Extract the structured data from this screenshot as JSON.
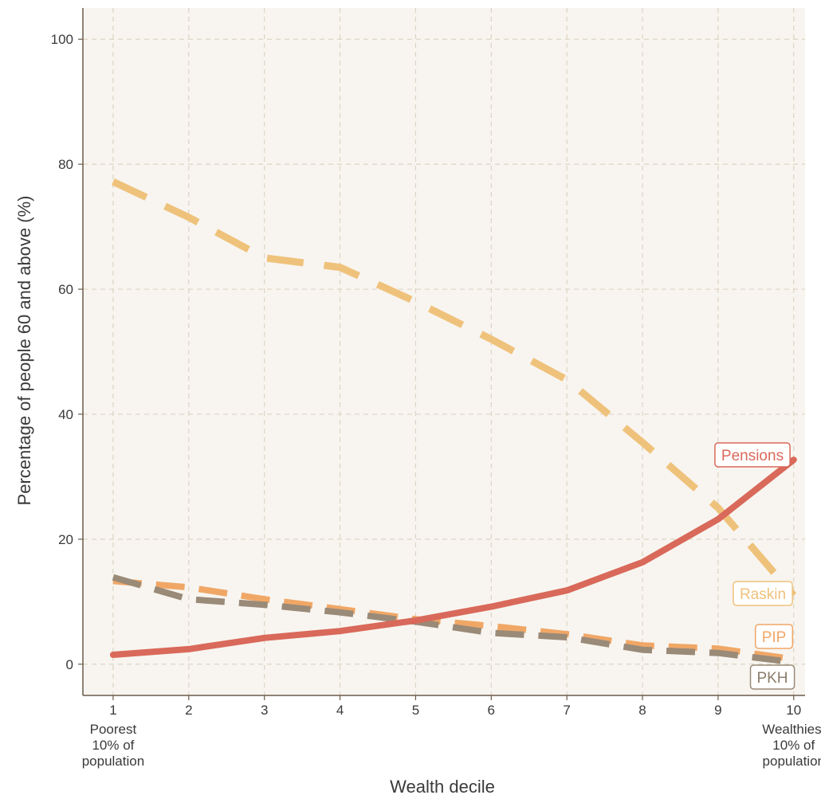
{
  "chart_data": {
    "type": "line",
    "title": "",
    "xlabel": "Wealth decile",
    "ylabel": "Percentage of people 60 and above (%)",
    "xlim": [
      0.6,
      10.15
    ],
    "ylim": [
      -5,
      105
    ],
    "grid": true,
    "x": [
      1,
      2,
      3,
      4,
      5,
      6,
      7,
      8,
      9,
      10
    ],
    "x_ticks": [
      1,
      2,
      3,
      4,
      5,
      6,
      7,
      8,
      9,
      10
    ],
    "x_tick_labels": [
      "1",
      "2",
      "3",
      "4",
      "5",
      "6",
      "7",
      "8",
      "9",
      "10"
    ],
    "y_ticks": [
      0,
      20,
      40,
      60,
      80,
      100
    ],
    "y_tick_labels": [
      "0",
      "20",
      "40",
      "60",
      "80",
      "100"
    ],
    "x_annotations": [
      {
        "x": 1,
        "lines": [
          "Poorest",
          "10% of",
          "population"
        ]
      },
      {
        "x": 10,
        "lines": [
          "Wealthiest",
          "10% of",
          "population"
        ]
      }
    ],
    "series": [
      {
        "name": "Pensions",
        "style": "solid",
        "color": "#D9695A",
        "values": [
          1.5,
          2.4,
          4.2,
          5.3,
          7.0,
          9.2,
          11.8,
          16.3,
          23.2,
          32.7
        ]
      },
      {
        "name": "Raskin",
        "style": "dashed",
        "color": "#EFC27B",
        "values": [
          77.2,
          71.5,
          65.0,
          63.5,
          58.0,
          52.0,
          45.5,
          35.5,
          25.0,
          11.0
        ]
      },
      {
        "name": "PIP",
        "style": "dashed",
        "color": "#F0A766",
        "values": [
          13.3,
          12.3,
          10.4,
          8.8,
          7.2,
          6.1,
          4.8,
          3.0,
          2.5,
          0.8
        ]
      },
      {
        "name": "PKH",
        "style": "dashed",
        "color": "#9A8A78",
        "values": [
          13.9,
          10.4,
          9.5,
          8.3,
          6.8,
          5.0,
          4.3,
          2.3,
          1.8,
          0.3
        ]
      }
    ],
    "colors": {
      "background": "#F8F5F0",
      "grid": "#DDD3C3",
      "axis": "#6B5B4B",
      "text": "#3A3A3A"
    }
  }
}
